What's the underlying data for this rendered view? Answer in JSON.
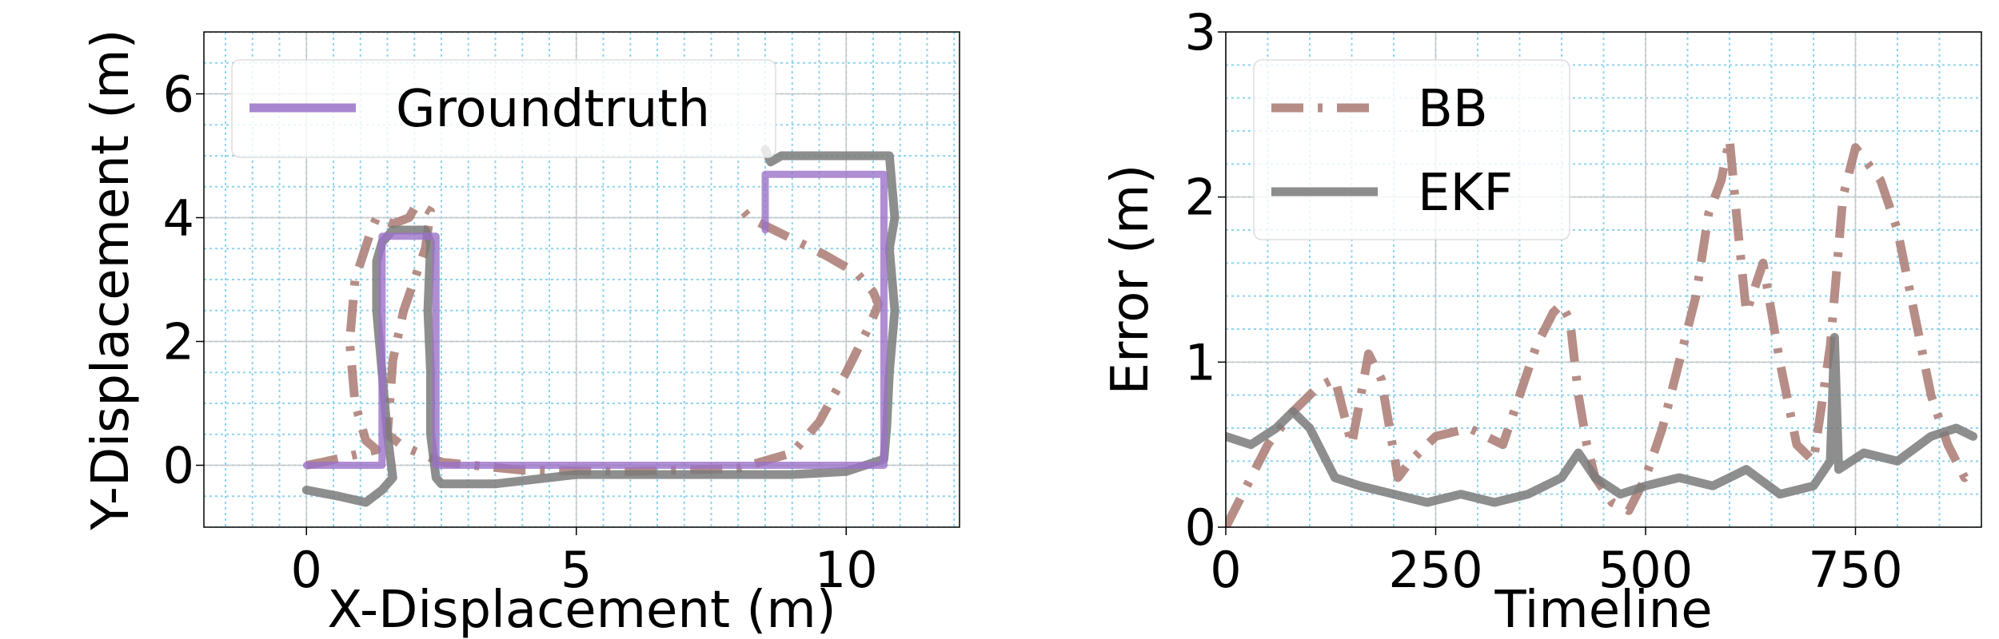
{
  "chart_data": [
    {
      "type": "line",
      "xlabel": "X-Displacement (m)",
      "ylabel": "Y-Displacement (m)",
      "xlim": [
        -1.9,
        12.1
      ],
      "ylim": [
        -1.0,
        7.0
      ],
      "xticks": [
        0,
        5,
        10
      ],
      "yticks": [
        0,
        2,
        4,
        6
      ],
      "grid": true,
      "legend_position": "top-left",
      "legend": [
        "Groundtruth"
      ],
      "series": [
        {
          "name": "Groundtruth",
          "color": "#9b72c8",
          "style": "solid",
          "x": [
            0.0,
            1.4,
            1.4,
            2.4,
            2.4,
            10.7,
            10.7,
            8.5,
            8.5
          ],
          "y": [
            0.0,
            0.0,
            3.7,
            3.7,
            0.0,
            0.0,
            4.7,
            4.7,
            3.8
          ]
        },
        {
          "color": "#a97a72",
          "style": "dashdot",
          "x": [
            0.0,
            0.3,
            0.8,
            1.3,
            1.1,
            0.9,
            0.8,
            0.9,
            1.2,
            1.3,
            1.6,
            1.9,
            2.0,
            2.1,
            2.3,
            2.2,
            2.0,
            1.8,
            1.6,
            1.5,
            1.8,
            2.5,
            4.0,
            6.0,
            8.0,
            9.0,
            9.5,
            10.0,
            10.4,
            10.6,
            10.5,
            10.2,
            9.6,
            8.9,
            8.2,
            8.0
          ],
          "y": [
            0.0,
            0.05,
            0.15,
            0.25,
            0.4,
            1.0,
            2.0,
            3.0,
            3.8,
            4.0,
            3.9,
            4.0,
            4.15,
            4.2,
            4.1,
            3.5,
            3.0,
            2.5,
            1.7,
            0.5,
            0.3,
            0.05,
            -0.08,
            -0.1,
            -0.05,
            0.2,
            0.7,
            1.5,
            2.2,
            2.6,
            2.8,
            3.1,
            3.4,
            3.7,
            4.0,
            4.2
          ]
        },
        {
          "color": "#7a7a7a",
          "style": "solid",
          "x": [
            0.0,
            0.6,
            1.1,
            1.4,
            1.6,
            1.5,
            1.4,
            1.3,
            1.3,
            1.4,
            1.6,
            1.9,
            2.2,
            2.3,
            2.25,
            2.3,
            2.3,
            2.4,
            2.5,
            3.5,
            5.0,
            7.0,
            9.0,
            10.0,
            10.7,
            10.75,
            10.8,
            10.9,
            10.8,
            10.9,
            10.8,
            10.3,
            9.5,
            8.8,
            8.6,
            8.5
          ],
          "y": [
            -0.4,
            -0.5,
            -0.6,
            -0.4,
            -0.2,
            0.5,
            1.5,
            2.5,
            3.3,
            3.6,
            3.8,
            3.8,
            3.8,
            3.6,
            2.5,
            1.5,
            0.5,
            -0.2,
            -0.3,
            -0.3,
            -0.15,
            -0.15,
            -0.15,
            -0.1,
            0.1,
            0.6,
            1.5,
            2.5,
            3.5,
            4.0,
            5.0,
            5.0,
            5.0,
            5.0,
            4.9,
            5.1
          ]
        }
      ]
    },
    {
      "type": "line",
      "xlabel": "Timeline",
      "ylabel": "Error (m)",
      "xlim": [
        0,
        900
      ],
      "ylim": [
        0,
        3
      ],
      "xticks": [
        0,
        250,
        500,
        750
      ],
      "yticks": [
        0,
        1,
        2,
        3
      ],
      "grid": true,
      "legend_position": "top-left",
      "legend": [
        "BB",
        "EKF"
      ],
      "series": [
        {
          "name": "BB",
          "color": "#a97a72",
          "style": "dashdot",
          "x": [
            0,
            20,
            50,
            80,
            110,
            130,
            150,
            170,
            185,
            195,
            205,
            220,
            250,
            290,
            330,
            350,
            370,
            390,
            400,
            410,
            420,
            430,
            440,
            460,
            480,
            500,
            520,
            540,
            560,
            575,
            590,
            600,
            610,
            620,
            640,
            660,
            680,
            700,
            720,
            735,
            750,
            765,
            780,
            800,
            820,
            840,
            860,
            880,
            890
          ],
          "y": [
            0.0,
            0.2,
            0.5,
            0.7,
            0.85,
            0.9,
            0.5,
            1.05,
            0.9,
            0.6,
            0.3,
            0.4,
            0.55,
            0.6,
            0.5,
            0.8,
            1.1,
            1.3,
            1.35,
            1.25,
            0.8,
            0.5,
            0.3,
            0.15,
            0.1,
            0.3,
            0.6,
            1.0,
            1.4,
            1.9,
            2.1,
            2.35,
            1.8,
            1.3,
            1.6,
            1.0,
            0.5,
            0.4,
            1.1,
            2.0,
            2.3,
            2.2,
            2.1,
            1.8,
            1.3,
            0.8,
            0.5,
            0.3,
            0.35
          ]
        },
        {
          "name": "EKF",
          "color": "#7a7a7a",
          "style": "solid",
          "x": [
            0,
            30,
            60,
            80,
            100,
            130,
            160,
            200,
            240,
            280,
            320,
            360,
            400,
            420,
            440,
            470,
            500,
            540,
            580,
            620,
            660,
            700,
            720,
            725,
            730,
            760,
            800,
            840,
            870,
            890
          ],
          "y": [
            0.55,
            0.5,
            0.6,
            0.7,
            0.6,
            0.3,
            0.25,
            0.2,
            0.15,
            0.2,
            0.15,
            0.2,
            0.3,
            0.45,
            0.3,
            0.2,
            0.25,
            0.3,
            0.25,
            0.35,
            0.2,
            0.25,
            0.4,
            1.15,
            0.35,
            0.45,
            0.4,
            0.55,
            0.6,
            0.55
          ]
        }
      ]
    }
  ]
}
